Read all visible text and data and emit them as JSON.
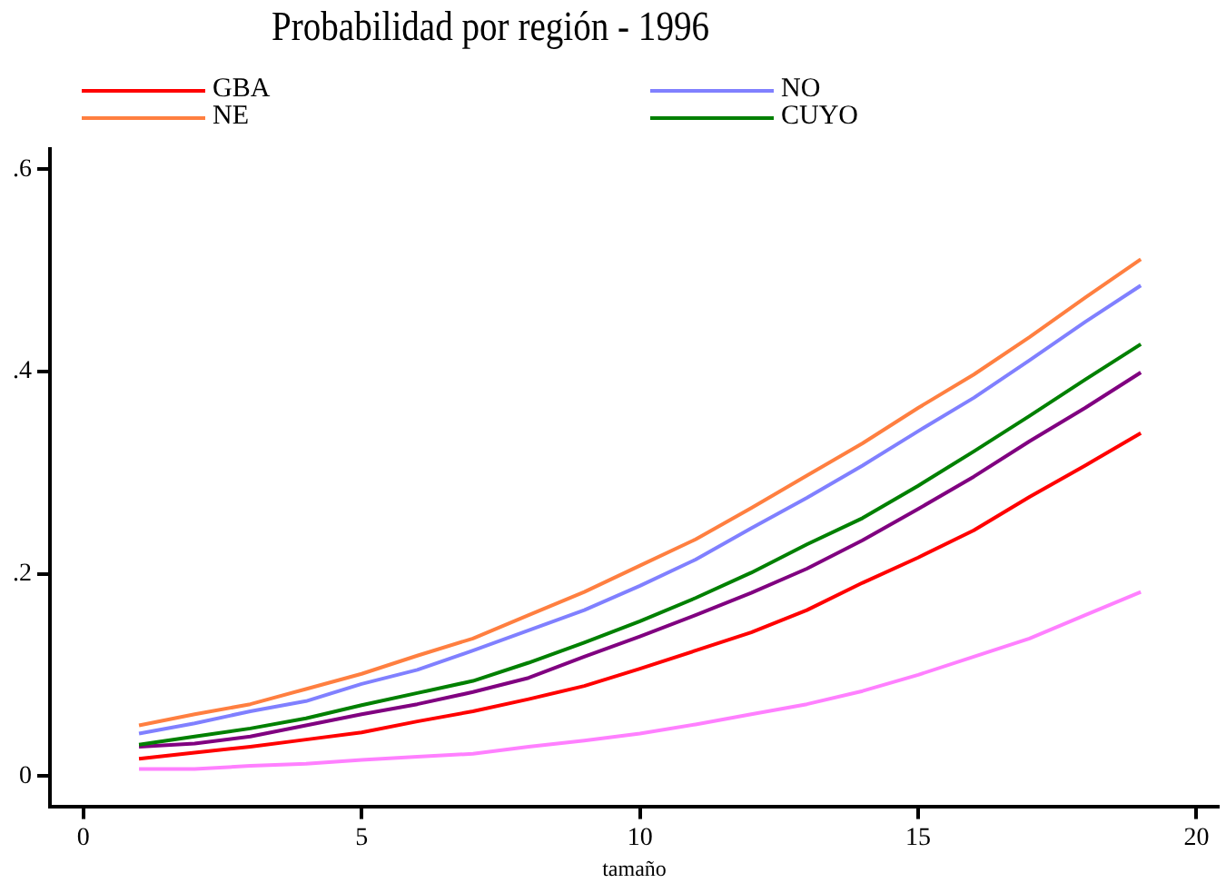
{
  "chart_data": {
    "type": "line",
    "title": "Probabilidad por región - 1996",
    "xlabel": "tamaño",
    "x": [
      1,
      2,
      3,
      4,
      5,
      6,
      7,
      8,
      9,
      10,
      11,
      12,
      13,
      14,
      15,
      16,
      17,
      18,
      19
    ],
    "series": [
      {
        "name": "GBA",
        "color": "#ff0000",
        "values": [
          0.017,
          0.023,
          0.029,
          0.036,
          0.043,
          0.054,
          0.064,
          0.076,
          0.089,
          0.106,
          0.124,
          0.142,
          0.164,
          0.191,
          0.216,
          0.243,
          0.276,
          0.307,
          0.339
        ]
      },
      {
        "name": "NO",
        "color": "#8080ff",
        "values": [
          0.042,
          0.052,
          0.064,
          0.074,
          0.091,
          0.105,
          0.124,
          0.144,
          0.164,
          0.188,
          0.214,
          0.245,
          0.275,
          0.307,
          0.341,
          0.374,
          0.411,
          0.449,
          0.485
        ]
      },
      {
        "name": "NE",
        "color": "#ff7f40",
        "values": [
          0.05,
          0.061,
          0.071,
          0.086,
          0.101,
          0.119,
          0.136,
          0.159,
          0.182,
          0.208,
          0.234,
          0.265,
          0.297,
          0.329,
          0.364,
          0.397,
          0.434,
          0.473,
          0.511
        ]
      },
      {
        "name": "CUYO",
        "color": "#008000",
        "values": [
          0.031,
          0.039,
          0.047,
          0.057,
          0.07,
          0.082,
          0.094,
          0.112,
          0.132,
          0.153,
          0.176,
          0.201,
          0.229,
          0.255,
          0.287,
          0.321,
          0.356,
          0.392,
          0.427
        ]
      },
      {
        "color": "#800080",
        "values": [
          0.029,
          0.032,
          0.039,
          0.05,
          0.061,
          0.071,
          0.083,
          0.097,
          0.118,
          0.138,
          0.159,
          0.181,
          0.205,
          0.233,
          0.264,
          0.296,
          0.331,
          0.364,
          0.399
        ]
      },
      {
        "color": "#ff80ff",
        "values": [
          0.007,
          0.007,
          0.01,
          0.012,
          0.016,
          0.019,
          0.022,
          0.029,
          0.035,
          0.042,
          0.051,
          0.061,
          0.071,
          0.084,
          0.1,
          0.118,
          0.136,
          0.159,
          0.182
        ]
      }
    ],
    "xlim": [
      -0.6,
      20.4
    ],
    "xticks": [
      0,
      5,
      10,
      15,
      20
    ],
    "ylim": [
      -0.03,
      0.62
    ],
    "yticks": [
      {
        "value": 0,
        "label": "0"
      },
      {
        "value": 0.2,
        "label": ".2"
      },
      {
        "value": 0.4,
        "label": ".4"
      },
      {
        "value": 0.6,
        "label": ".6"
      }
    ],
    "grid": false,
    "legend": "top",
    "marker": "none",
    "line_style": "solid"
  }
}
